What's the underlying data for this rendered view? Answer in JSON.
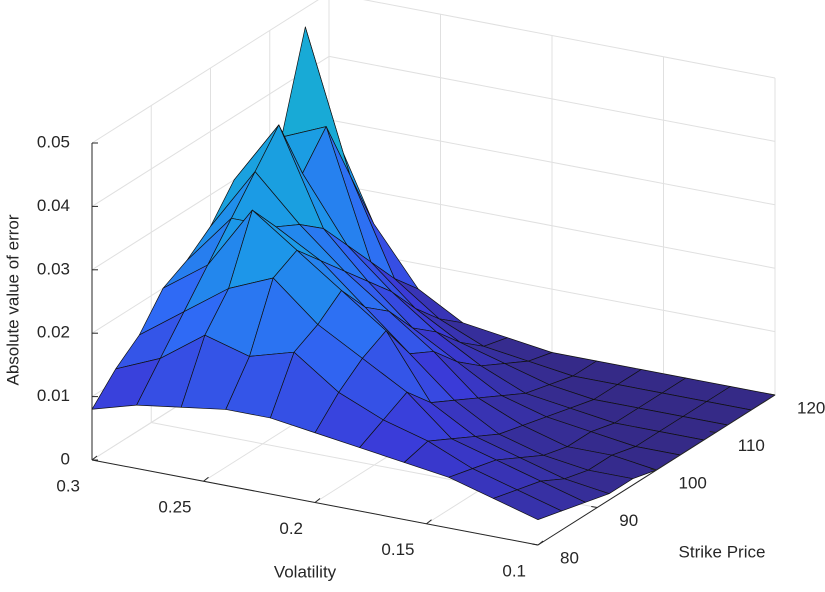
{
  "chart_data": {
    "type": "surface",
    "xlabel": "Strike Price",
    "ylabel": "Volatility",
    "zlabel": "Absolute value of error",
    "x": [
      80,
      84,
      88,
      92,
      96,
      100,
      104,
      108,
      112,
      116,
      120
    ],
    "y": [
      0.1,
      0.12,
      0.14,
      0.16,
      0.18,
      0.2,
      0.22,
      0.24,
      0.26,
      0.28,
      0.3
    ],
    "z": [
      [
        0.004,
        0.003,
        0.002,
        0.001,
        0.001,
        0,
        0,
        0,
        0,
        0,
        0
      ],
      [
        0.006,
        0.005,
        0.004,
        0.002,
        0.001,
        0.001,
        0,
        0,
        0,
        0,
        0
      ],
      [
        0.008,
        0.007,
        0.006,
        0.004,
        0.002,
        0.001,
        0.001,
        0,
        0,
        0,
        0
      ],
      [
        0.009,
        0.01,
        0.008,
        0.006,
        0.004,
        0.003,
        0.002,
        0.001,
        0,
        0,
        0
      ],
      [
        0.01,
        0.012,
        0.014,
        0.01,
        0.008,
        0.006,
        0.004,
        0.002,
        0.001,
        0,
        0
      ],
      [
        0.011,
        0.015,
        0.018,
        0.02,
        0.014,
        0.012,
        0.008,
        0.005,
        0.003,
        0.001,
        0
      ],
      [
        0.012,
        0.02,
        0.022,
        0.025,
        0.02,
        0.017,
        0.012,
        0.009,
        0.005,
        0.002,
        0.001
      ],
      [
        0.012,
        0.018,
        0.028,
        0.03,
        0.026,
        0.022,
        0.018,
        0.014,
        0.009,
        0.005,
        0.002
      ],
      [
        0.011,
        0.02,
        0.025,
        0.035,
        0.03,
        0.028,
        0.025,
        0.02,
        0.015,
        0.01,
        0.006
      ],
      [
        0.01,
        0.015,
        0.02,
        0.025,
        0.03,
        0.035,
        0.04,
        0.03,
        0.035,
        0.025,
        0.015
      ],
      [
        0.008,
        0.012,
        0.015,
        0.02,
        0.022,
        0.025,
        0.03,
        0.028,
        0.032,
        0.047,
        0.03
      ]
    ],
    "xlim": [
      80,
      120
    ],
    "ylim": [
      0.1,
      0.3
    ],
    "zlim": [
      0,
      0.05
    ],
    "xticks": [
      80,
      90,
      100,
      110,
      120
    ],
    "yticks": [
      0.1,
      0.15,
      0.2,
      0.25,
      0.3
    ],
    "zticks": [
      0,
      0.01,
      0.02,
      0.03,
      0.04,
      0.05
    ],
    "grid": true,
    "colormap": [
      "#352a87",
      "#3a3bd8",
      "#2f6af5",
      "#1c98e8",
      "#13bdc2",
      "#6cc57e"
    ]
  }
}
